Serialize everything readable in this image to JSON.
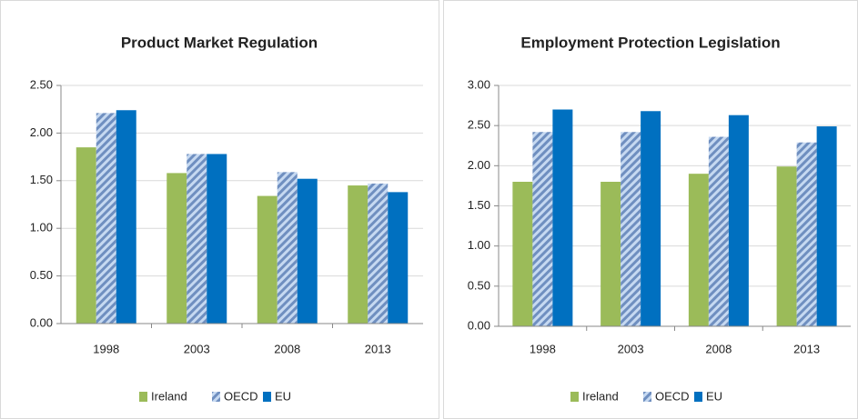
{
  "chart_data": [
    {
      "type": "bar",
      "title": "Product Market Regulation",
      "categories": [
        "1998",
        "2003",
        "2008",
        "2013"
      ],
      "series": [
        {
          "name": "Ireland",
          "color": "#9bbb59",
          "values": [
            1.85,
            1.58,
            1.34,
            1.45
          ]
        },
        {
          "name": "OECD",
          "color": "#8eb4e3",
          "hatch": true,
          "values": [
            2.21,
            1.78,
            1.59,
            1.47
          ]
        },
        {
          "name": "EU",
          "color": "#0070c0",
          "values": [
            2.24,
            1.78,
            1.52,
            1.38
          ]
        }
      ],
      "ylim": [
        0,
        2.5
      ],
      "yticks": [
        {
          "value": 0,
          "label": "0.00"
        },
        {
          "value": 0.5,
          "label": "0.50"
        },
        {
          "value": 1,
          "label": "1.00"
        },
        {
          "value": 1.5,
          "label": "1.50"
        },
        {
          "value": 2,
          "label": "2.00"
        },
        {
          "value": 2.5,
          "label": "2.50"
        }
      ],
      "grid": true,
      "legend": "bottom"
    },
    {
      "type": "bar",
      "title": "Employment Protection Legislation",
      "categories": [
        "1998",
        "2003",
        "2008",
        "2013"
      ],
      "series": [
        {
          "name": "Ireland",
          "color": "#9bbb59",
          "values": [
            1.8,
            1.8,
            1.9,
            1.99
          ]
        },
        {
          "name": "OECD",
          "color": "#8eb4e3",
          "hatch": true,
          "values": [
            2.42,
            2.42,
            2.36,
            2.29
          ]
        },
        {
          "name": "EU",
          "color": "#0070c0",
          "values": [
            2.7,
            2.68,
            2.63,
            2.49
          ]
        }
      ],
      "ylim": [
        0,
        3
      ],
      "yticks": [
        {
          "value": 0,
          "label": "0.00"
        },
        {
          "value": 0.5,
          "label": "0.50"
        },
        {
          "value": 1,
          "label": "1.00"
        },
        {
          "value": 1.5,
          "label": "1.50"
        },
        {
          "value": 2,
          "label": "2.00"
        },
        {
          "value": 2.5,
          "label": "2.50"
        },
        {
          "value": 3,
          "label": "3.00"
        }
      ],
      "grid": true,
      "legend": "bottom"
    }
  ]
}
